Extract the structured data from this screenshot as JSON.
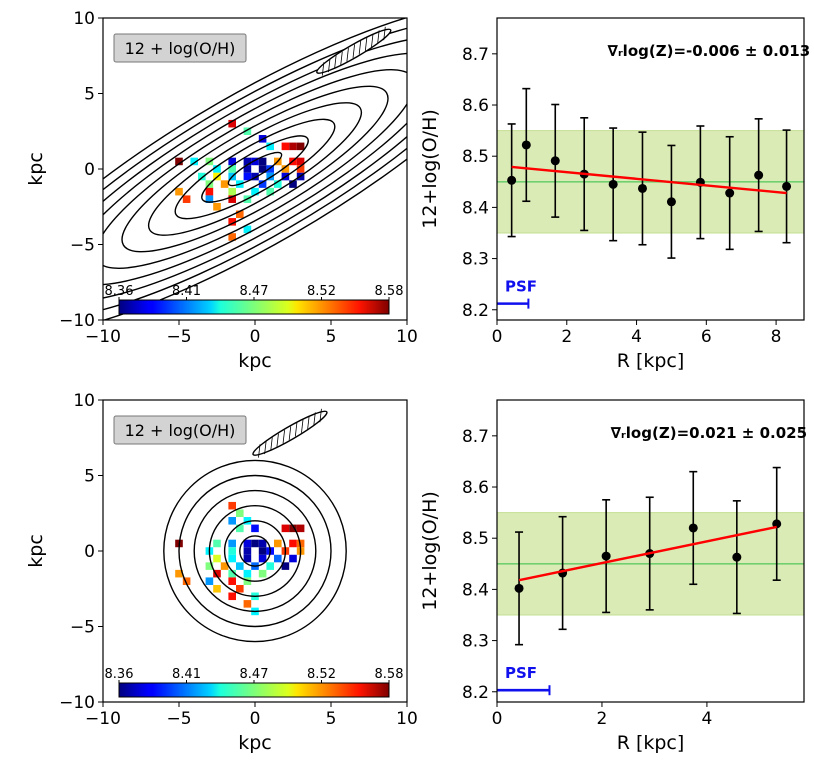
{
  "chart_data": [
    {
      "type": "heatmap",
      "panel": "top-left",
      "xlabel": "kpc",
      "ylabel": "kpc",
      "xlim": [
        -10,
        10
      ],
      "ylim": [
        -10,
        10
      ],
      "xticks": [
        "−10",
        "−5",
        "0",
        "5",
        "10"
      ],
      "yticks": [
        "−10",
        "−5",
        "0",
        "5",
        "10"
      ],
      "legend_label": "12 + log(O/H)",
      "colorbar_ticks": [
        "8.36",
        "8.41",
        "8.47",
        "8.52",
        "8.58"
      ],
      "colorbar_range": [
        8.36,
        8.58
      ],
      "contours": {
        "center": [
          0,
          0
        ],
        "pa_deg": 30,
        "axis_ratio": 0.25,
        "semimajor": [
          2,
          4,
          6,
          8,
          10,
          12,
          14,
          16,
          18,
          20
        ]
      },
      "psf_ellipse": {
        "center": [
          6.5,
          7.8
        ],
        "semimajor": 2.8,
        "semiminor": 0.42,
        "pa_deg": 30
      },
      "pixels": [
        [
          -1.5,
          3.0,
          8.56
        ],
        [
          -0.5,
          2.5,
          8.46
        ],
        [
          0.5,
          2.0,
          8.38
        ],
        [
          1.0,
          1.5,
          8.44
        ],
        [
          2.0,
          1.5,
          8.55
        ],
        [
          2.5,
          1.5,
          8.57
        ],
        [
          3.0,
          1.5,
          8.58
        ],
        [
          -5.0,
          0.5,
          8.58
        ],
        [
          -4.0,
          0.5,
          8.44
        ],
        [
          -3.0,
          0.5,
          8.47
        ],
        [
          -1.5,
          0.5,
          8.38
        ],
        [
          -0.5,
          0.5,
          8.37
        ],
        [
          0.0,
          0.5,
          8.38
        ],
        [
          0.5,
          0.5,
          8.36
        ],
        [
          1.5,
          0.5,
          8.52
        ],
        [
          2.5,
          0.5,
          8.55
        ],
        [
          3.0,
          0.5,
          8.56
        ],
        [
          -2.5,
          0.0,
          8.44
        ],
        [
          -1.5,
          0.0,
          8.46
        ],
        [
          -0.5,
          0.0,
          8.37
        ],
        [
          0.5,
          0.0,
          8.36
        ],
        [
          1.0,
          0.0,
          8.4
        ],
        [
          2.0,
          0.0,
          8.52
        ],
        [
          3.0,
          0.0,
          8.54
        ],
        [
          -3.5,
          -0.5,
          8.45
        ],
        [
          -2.5,
          -0.5,
          8.5
        ],
        [
          -1.5,
          -0.5,
          8.43
        ],
        [
          -0.5,
          -0.5,
          8.39
        ],
        [
          0.0,
          -0.5,
          8.37
        ],
        [
          1.0,
          -0.5,
          8.42
        ],
        [
          2.0,
          -0.5,
          8.38
        ],
        [
          3.0,
          -0.5,
          8.37
        ],
        [
          -3.0,
          -1.0,
          8.47
        ],
        [
          -2.0,
          -1.0,
          8.52
        ],
        [
          -1.0,
          -1.0,
          8.44
        ],
        [
          0.5,
          -1.0,
          8.4
        ],
        [
          1.5,
          -1.0,
          8.45
        ],
        [
          2.5,
          -1.0,
          8.36
        ],
        [
          -5.0,
          -1.5,
          8.52
        ],
        [
          -3.0,
          -1.5,
          8.55
        ],
        [
          -1.5,
          -1.5,
          8.48
        ],
        [
          0.0,
          -1.5,
          8.44
        ],
        [
          1.0,
          -1.5,
          8.46
        ],
        [
          -4.5,
          -2.0,
          8.54
        ],
        [
          -3.0,
          -2.0,
          8.42
        ],
        [
          -1.5,
          -2.0,
          8.56
        ],
        [
          -0.5,
          -2.0,
          8.46
        ],
        [
          -2.5,
          -2.5,
          8.52
        ],
        [
          -1.0,
          -3.0,
          8.53
        ],
        [
          -1.5,
          -3.5,
          8.55
        ],
        [
          -1.5,
          -4.5,
          8.53
        ],
        [
          -0.5,
          -4.0,
          8.44
        ]
      ]
    },
    {
      "type": "line",
      "panel": "top-right",
      "xlabel": "R [kpc]",
      "ylabel": "12+log(O/H)",
      "xlim": [
        0,
        8.8
      ],
      "ylim": [
        8.18,
        8.77
      ],
      "xticks": [
        "0",
        "2",
        "4",
        "6",
        "8"
      ],
      "yticks": [
        "8.2",
        "8.3",
        "8.4",
        "8.5",
        "8.6",
        "8.7"
      ],
      "annotation": "∇ᵣlog(Z)=-0.006 ± 0.013",
      "psf_label": "PSF",
      "psf_bar": [
        0,
        0.9,
        8.212
      ],
      "band": {
        "center": 8.45,
        "low": 8.35,
        "high": 8.55
      },
      "fit": {
        "x": [
          0.42,
          8.3
        ],
        "y": [
          8.479,
          8.428
        ]
      },
      "x": [
        0.42,
        0.84,
        1.67,
        2.5,
        3.33,
        4.17,
        5.0,
        5.83,
        6.67,
        7.5,
        8.3
      ],
      "y": [
        8.453,
        8.522,
        8.491,
        8.465,
        8.445,
        8.437,
        8.411,
        8.449,
        8.428,
        8.463,
        8.441
      ],
      "yerr": [
        0.11,
        0.11,
        0.11,
        0.11,
        0.11,
        0.11,
        0.11,
        0.11,
        0.11,
        0.11,
        0.11
      ]
    },
    {
      "type": "heatmap",
      "panel": "bottom-left",
      "xlabel": "kpc",
      "ylabel": "kpc",
      "xlim": [
        -10,
        10
      ],
      "ylim": [
        -10,
        10
      ],
      "xticks": [
        "−10",
        "−5",
        "0",
        "5",
        "10"
      ],
      "yticks": [
        "−10",
        "−5",
        "0",
        "5",
        "10"
      ],
      "legend_label": "12 + log(O/H)",
      "colorbar_ticks": [
        "8.36",
        "8.41",
        "8.47",
        "8.52",
        "8.58"
      ],
      "colorbar_range": [
        8.36,
        8.58
      ],
      "contours": {
        "center": [
          0,
          0
        ],
        "pa_deg": 0,
        "axis_ratio": 1.0,
        "semimajor": [
          1,
          2,
          3,
          4,
          5,
          6
        ]
      },
      "psf_ellipse": {
        "center": [
          2.3,
          7.8
        ],
        "semimajor": 2.8,
        "semiminor": 0.42,
        "pa_deg": 30
      },
      "pixels": [
        [
          -1.5,
          3.0,
          8.54
        ],
        [
          -1.0,
          2.5,
          8.47
        ],
        [
          -1.5,
          2.0,
          8.42
        ],
        [
          -0.5,
          2.0,
          8.44
        ],
        [
          -1.0,
          1.5,
          8.46
        ],
        [
          0.0,
          1.5,
          8.39
        ],
        [
          2.0,
          1.5,
          8.56
        ],
        [
          2.5,
          1.5,
          8.58
        ],
        [
          3.0,
          1.5,
          8.57
        ],
        [
          -5.0,
          0.5,
          8.58
        ],
        [
          -2.5,
          0.5,
          8.46
        ],
        [
          -1.5,
          0.5,
          8.42
        ],
        [
          -0.5,
          0.5,
          8.38
        ],
        [
          0.0,
          0.5,
          8.36
        ],
        [
          0.5,
          0.5,
          8.37
        ],
        [
          1.5,
          0.5,
          8.52
        ],
        [
          2.5,
          0.5,
          8.55
        ],
        [
          3.0,
          0.5,
          8.53
        ],
        [
          -3.0,
          0.0,
          8.44
        ],
        [
          -1.5,
          0.0,
          8.45
        ],
        [
          -0.5,
          0.0,
          8.37
        ],
        [
          0.5,
          0.0,
          8.36
        ],
        [
          1.0,
          0.0,
          8.39
        ],
        [
          2.0,
          0.0,
          8.54
        ],
        [
          3.0,
          0.0,
          8.52
        ],
        [
          -2.5,
          -0.5,
          8.49
        ],
        [
          -1.5,
          -0.5,
          8.44
        ],
        [
          -0.5,
          -0.5,
          8.37
        ],
        [
          0.5,
          -0.5,
          8.38
        ],
        [
          1.5,
          -0.5,
          8.41
        ],
        [
          2.5,
          -0.5,
          8.38
        ],
        [
          -3.0,
          -1.0,
          8.47
        ],
        [
          -2.0,
          -1.0,
          8.52
        ],
        [
          -1.0,
          -1.0,
          8.43
        ],
        [
          0.0,
          -1.0,
          8.41
        ],
        [
          1.0,
          -1.0,
          8.45
        ],
        [
          2.0,
          -1.0,
          8.36
        ],
        [
          -5.0,
          -1.5,
          8.52
        ],
        [
          -2.5,
          -1.5,
          8.56
        ],
        [
          -1.5,
          -1.5,
          8.46
        ],
        [
          -0.5,
          -1.5,
          8.44
        ],
        [
          0.5,
          -1.5,
          8.47
        ],
        [
          -4.5,
          -2.0,
          8.53
        ],
        [
          -3.0,
          -2.0,
          8.42
        ],
        [
          -1.5,
          -2.0,
          8.55
        ],
        [
          -0.5,
          -2.0,
          8.47
        ],
        [
          -2.5,
          -2.5,
          8.51
        ],
        [
          -1.0,
          -2.5,
          8.54
        ],
        [
          -1.5,
          -3.0,
          8.55
        ],
        [
          0.0,
          -3.0,
          8.45
        ],
        [
          -0.5,
          -3.5,
          8.53
        ],
        [
          0.0,
          -4.0,
          8.44
        ]
      ]
    },
    {
      "type": "line",
      "panel": "bottom-right",
      "xlabel": "R [kpc]",
      "ylabel": "12+log(O/H)",
      "xlim": [
        0,
        5.85
      ],
      "ylim": [
        8.18,
        8.77
      ],
      "xticks": [
        "0",
        "2",
        "4"
      ],
      "yticks": [
        "8.2",
        "8.3",
        "8.4",
        "8.5",
        "8.6",
        "8.7"
      ],
      "annotation": "∇ᵣlog(Z)=0.021 ± 0.025",
      "psf_label": "PSF",
      "psf_bar": [
        0,
        1.0,
        8.203
      ],
      "band": {
        "center": 8.45,
        "low": 8.35,
        "high": 8.55
      },
      "fit": {
        "x": [
          0.42,
          5.33
        ],
        "y": [
          8.418,
          8.522
        ]
      },
      "x": [
        0.42,
        1.25,
        2.08,
        2.91,
        3.74,
        4.57,
        5.33
      ],
      "y": [
        8.402,
        8.432,
        8.465,
        8.47,
        8.52,
        8.463,
        8.528
      ],
      "yerr": [
        0.11,
        0.11,
        0.11,
        0.11,
        0.11,
        0.11,
        0.11
      ]
    }
  ]
}
